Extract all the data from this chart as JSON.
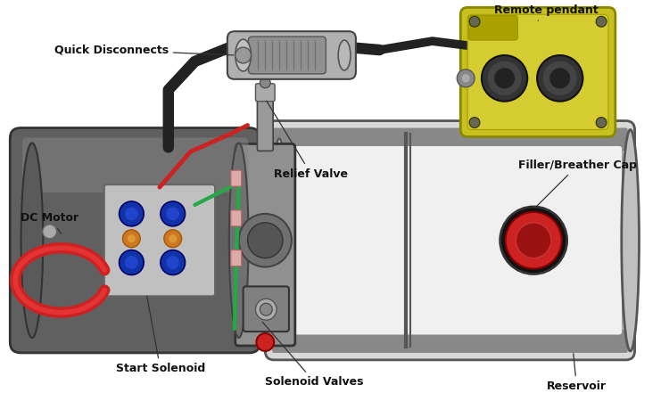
{
  "bg_color": "#ffffff",
  "labels": {
    "quick_disconnects": "Quick Disconnects",
    "remote_pendant": "Remote pendant",
    "dc_motor": "DC Motor",
    "relief_valve": "Relief Valve",
    "filler_breather_cap": "Filler/Breather Cap",
    "start_solenoid": "Start Solenoid",
    "solenoid_valves": "Solenoid Valves",
    "reservoir": "Reservoir"
  },
  "font_size": 9,
  "font_size_bold": 9,
  "motor_fc": "#808080",
  "motor_ec": "#333333",
  "reservoir_fc": "#e0e0e0",
  "reservoir_ec": "#555555",
  "valve_fc": "#909090",
  "valve_ec": "#333333",
  "pendant_fc": "#c8c020",
  "pendant_ec": "#888800",
  "cable_color": "#222222",
  "connector_fc": "#b0b0b0",
  "connector_ec": "#444444",
  "red_accent": "#cc2222",
  "blue_wire": "#2244cc",
  "green_wire": "#22aa44",
  "red_wire": "#cc2222"
}
